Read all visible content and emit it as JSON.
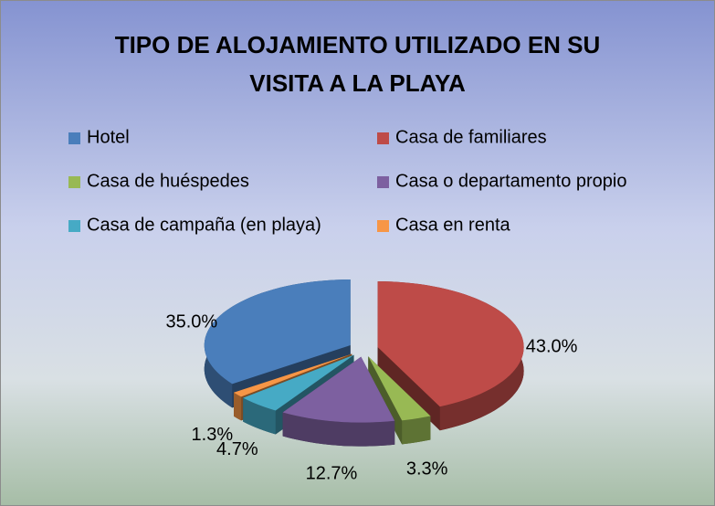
{
  "chart_data": {
    "type": "pie3d",
    "title": "TIPO DE ALOJAMIENTO UTILIZADO EN SU VISITA A LA PLAYA",
    "categories": [
      "Hotel",
      "Casa de familiares",
      "Casa de huéspedes",
      "Casa o departamento propio",
      "Casa de campaña (en playa)",
      "Casa en renta"
    ],
    "values": [
      35.0,
      43.0,
      3.3,
      12.7,
      4.7,
      1.3
    ],
    "value_labels": [
      "35.0%",
      "43.0%",
      "3.3%",
      "12.7%",
      "4.7%",
      "1.3%"
    ],
    "colors": [
      "#4a7ebb",
      "#be4b48",
      "#98b954",
      "#7d60a0",
      "#46aac5",
      "#f79646"
    ],
    "legend": "top"
  }
}
